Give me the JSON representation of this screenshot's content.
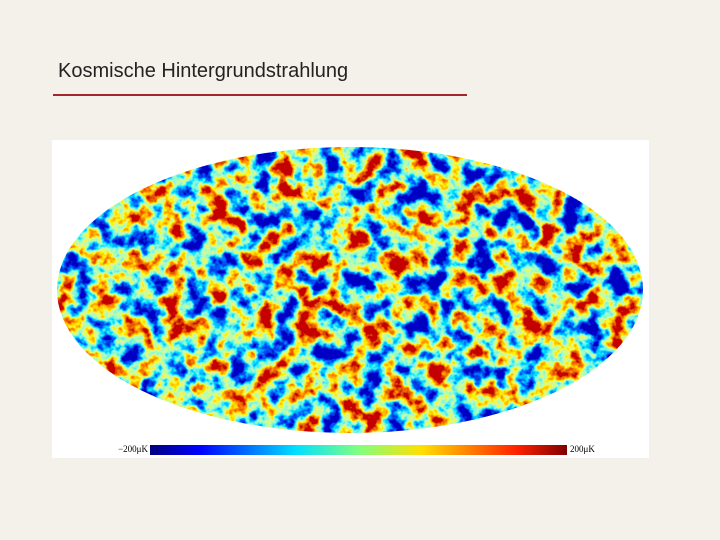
{
  "slide": {
    "title": "Kosmische Hintergrundstrahlung",
    "image": {
      "colorbar": {
        "min_label": "−200μK",
        "max_label": "200μK"
      }
    }
  }
}
